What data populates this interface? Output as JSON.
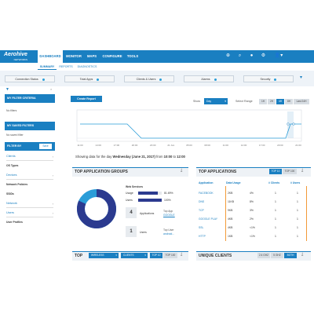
{
  "brand": {
    "name": "Aerohive",
    "sub": "NETWORKS"
  },
  "nav": {
    "items": [
      "DASHBOARD",
      "MONITOR",
      "MAPS",
      "CONFIGURE",
      "TOOLS"
    ],
    "active": 0
  },
  "subnav": {
    "items": [
      "SUMMARY",
      "REPORTS",
      "DIAGNOSTICS"
    ],
    "active": 0
  },
  "status_tiles": [
    "Connection Status",
    "Total Apps",
    "Clients & Users",
    "Alarms",
    "Security"
  ],
  "sidebar": {
    "filter_criteria": "MY FILTER CRITERIA",
    "no_filters": "No filters",
    "saved_filters": "MY SAVED FILTERS",
    "no_saved_filter": "No saved filter",
    "filter_by": "FILTER BY",
    "filter_btn": "Save",
    "groups": [
      {
        "label": "Clients",
        "items": [
          "OS Types"
        ]
      },
      {
        "label": "Devices",
        "items": [
          "Network Policies",
          "SSIDs"
        ]
      },
      {
        "label": "Network",
        "items": []
      },
      {
        "label": "Users",
        "items": [
          "User Profiles"
        ]
      }
    ]
  },
  "toolbar": {
    "create_report": "Create Report",
    "show_label": "Show",
    "show_value": "Day",
    "range_label": "Select Range",
    "ranges": [
      "1H",
      "2H",
      "4H",
      "8H",
      "Last 24H"
    ],
    "active_range": 2
  },
  "timeline": {
    "xticks": [
      "11:00",
      "14:00",
      "17:00",
      "20:00",
      "23:00",
      "21 Jun",
      "05:00",
      "08:00",
      "11:00",
      "14:00",
      "17:00",
      "20:00",
      "21:00"
    ]
  },
  "showing": {
    "prefix": "Showing data for the day",
    "date": "Wednesday (June 21, 2017)",
    "from_word": "from",
    "start": "10:00",
    "to_word": "to",
    "end": "12:00"
  },
  "app_groups": {
    "title": "TOP APPLICATION GROUPS",
    "group_name": "Web Services",
    "usage_label": "Usage",
    "usage_value": "81.69%",
    "users_label": "Users",
    "users_value": "100%",
    "apps_count": "4",
    "apps_label": "Applications",
    "top_app_label": "Top App",
    "top_app_value": "GOOGLE",
    "users_count": "1",
    "users_word": "Users",
    "top_user_label": "Top User",
    "top_user_value": "android..."
  },
  "top_apps": {
    "title": "TOP APPLICATIONS",
    "toggles": [
      "TOP 10",
      "TOP 100"
    ],
    "columns": [
      "Application",
      "Data Usage",
      "",
      "# Clients",
      "# Users"
    ],
    "rows": [
      {
        "app": "FACEBOOK",
        "data": "2KB",
        "pct": "4%",
        "clients": "1",
        "users": "1"
      },
      {
        "app": "DNS",
        "data": "11KB",
        "pct": "8%",
        "clients": "1",
        "users": "1"
      },
      {
        "app": "TCP",
        "data": "9KB",
        "pct": "3%",
        "clients": "1",
        "users": "1"
      },
      {
        "app": "GOOGLE PLAY",
        "data": "4KB",
        "pct": "2%",
        "clients": "1",
        "users": "1"
      },
      {
        "app": "SSL",
        "data": "4KB",
        "pct": "<1%",
        "clients": "1",
        "users": "1"
      },
      {
        "app": "HTTP",
        "data": "1KB",
        "pct": "<1%",
        "clients": "1",
        "users": "1"
      }
    ]
  },
  "bottom_left": {
    "title": "TOP",
    "dd1": "WIRELESS",
    "dd2": "CLIENTS",
    "toggles": [
      "TOP 10",
      "TOP 100"
    ]
  },
  "bottom_right": {
    "title": "UNIQUE CLIENTS",
    "toggles": [
      "2.4 GHZ",
      "5 GHZ",
      "BOTH"
    ]
  },
  "colors": {
    "primary": "#1a7fc1",
    "donut_dark": "#2b3a8f",
    "donut_light": "#2a9dd8",
    "timeline": "#2a9dd8"
  },
  "donut_fraction": 0.817
}
